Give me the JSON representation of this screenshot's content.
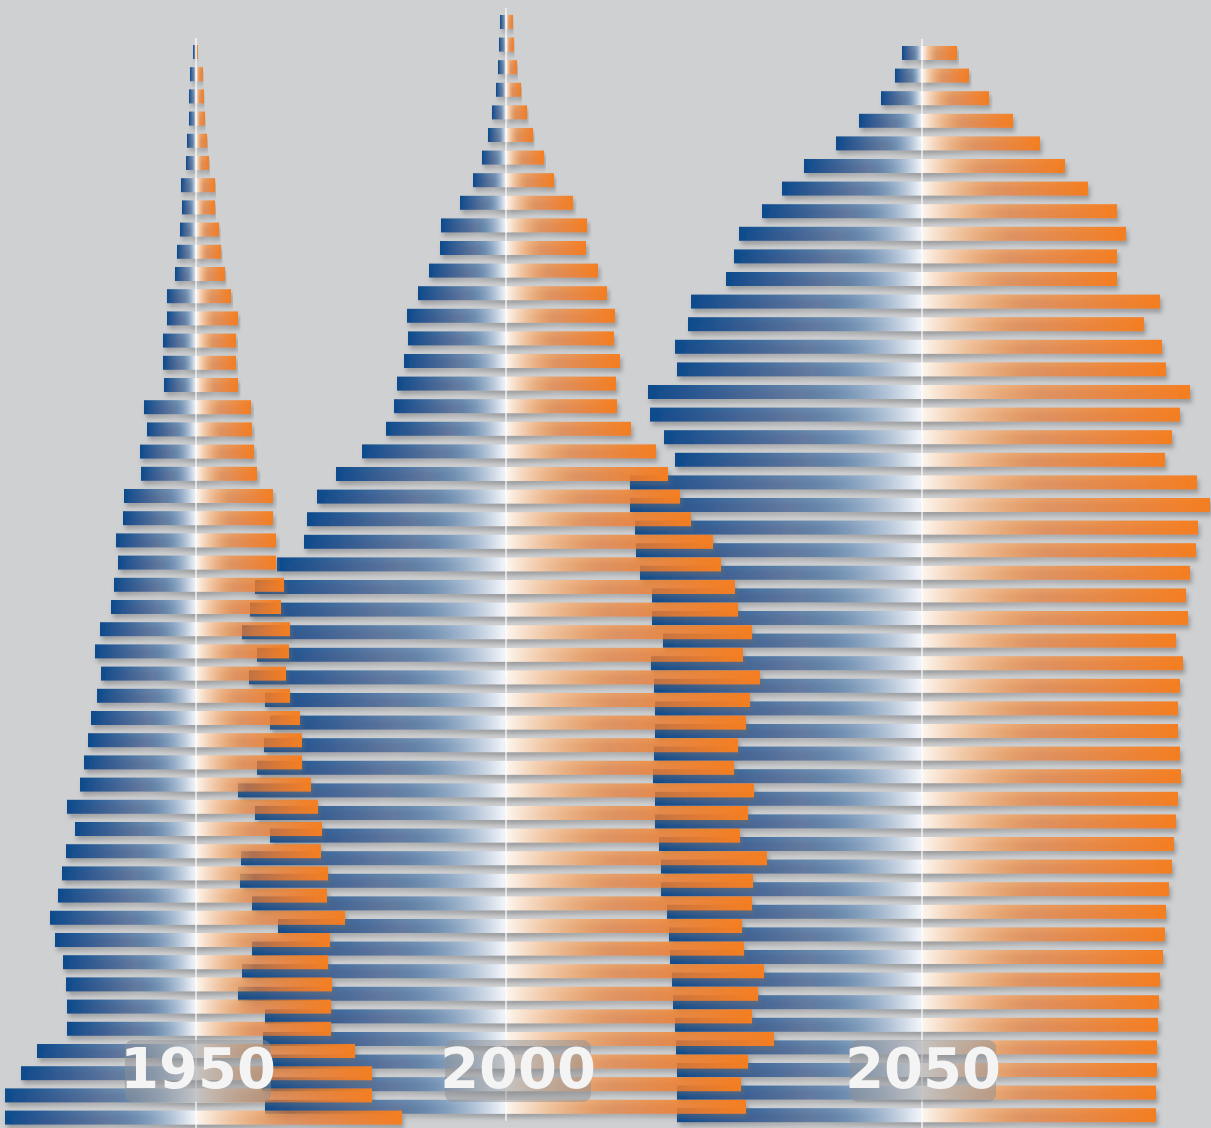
{
  "chart_data": [
    {
      "type": "pyramid",
      "title": "1950",
      "series": [
        {
          "color": "#0b4a8c",
          "values": [
            3,
            6,
            7,
            7,
            9,
            10,
            15,
            14,
            16,
            19,
            21,
            29,
            29,
            33,
            33,
            32,
            52,
            49,
            56,
            55,
            72,
            73,
            80,
            78,
            82,
            85,
            96,
            101,
            95,
            99,
            105,
            108,
            112,
            116,
            129,
            121,
            130,
            134,
            138,
            146,
            141,
            133,
            130,
            129,
            129,
            159,
            175,
            191,
            191
          ]
        },
        {
          "color": "#f47e20",
          "values": [
            2,
            7,
            8,
            9,
            11,
            13,
            19,
            19,
            23,
            25,
            29,
            35,
            42,
            40,
            40,
            42,
            55,
            56,
            58,
            61,
            77,
            77,
            80,
            80,
            88,
            85,
            94,
            93,
            90,
            94,
            104,
            106,
            106,
            115,
            122,
            126,
            125,
            132,
            131,
            149,
            134,
            132,
            136,
            135,
            135,
            159,
            176,
            176,
            206
          ]
        }
      ]
    },
    {
      "type": "pyramid",
      "title": "2000",
      "series": [
        {
          "color": "#0b4a8c",
          "values": [
            6,
            7,
            8,
            10,
            14,
            18,
            24,
            33,
            46,
            65,
            66,
            77,
            88,
            99,
            98,
            102,
            109,
            112,
            120,
            144,
            170,
            189,
            199,
            202,
            229,
            251,
            256,
            264,
            249,
            257,
            241,
            236,
            242,
            249,
            268,
            251,
            236,
            265,
            266,
            254,
            228,
            254,
            264,
            268,
            241,
            243,
            236,
            244,
            241
          ]
        },
        {
          "color": "#f47e20",
          "values": [
            7,
            8,
            11,
            15,
            21,
            27,
            38,
            48,
            67,
            81,
            80,
            92,
            101,
            109,
            108,
            114,
            110,
            111,
            125,
            150,
            162,
            174,
            185,
            207,
            215,
            229,
            232,
            246,
            237,
            254,
            244,
            240,
            232,
            228,
            248,
            242,
            234,
            261,
            247,
            246,
            236,
            238,
            258,
            252,
            246,
            268,
            242,
            235,
            240
          ]
        }
      ]
    },
    {
      "type": "pyramid",
      "title": "2050",
      "series": [
        {
          "color": "#0b4a8c",
          "values": [
            20,
            27,
            41,
            63,
            86,
            118,
            140,
            160,
            183,
            188,
            196,
            231,
            234,
            247,
            245,
            274,
            272,
            258,
            247,
            292,
            292,
            287,
            286,
            282,
            270,
            270,
            259,
            271,
            268,
            267,
            267,
            268,
            269,
            267,
            267,
            263,
            261,
            261,
            255,
            253,
            252,
            250,
            249,
            247,
            246,
            245,
            245,
            245
          ]
        },
        {
          "color": "#f47e20",
          "values": [
            35,
            47,
            67,
            91,
            118,
            143,
            166,
            195,
            204,
            195,
            195,
            238,
            222,
            240,
            244,
            268,
            258,
            250,
            243,
            275,
            288,
            276,
            274,
            268,
            264,
            266,
            254,
            261,
            258,
            256,
            256,
            258,
            259,
            256,
            254,
            252,
            250,
            247,
            244,
            243,
            241,
            238,
            237,
            236,
            235,
            235,
            234,
            234
          ]
        }
      ]
    }
  ]
}
